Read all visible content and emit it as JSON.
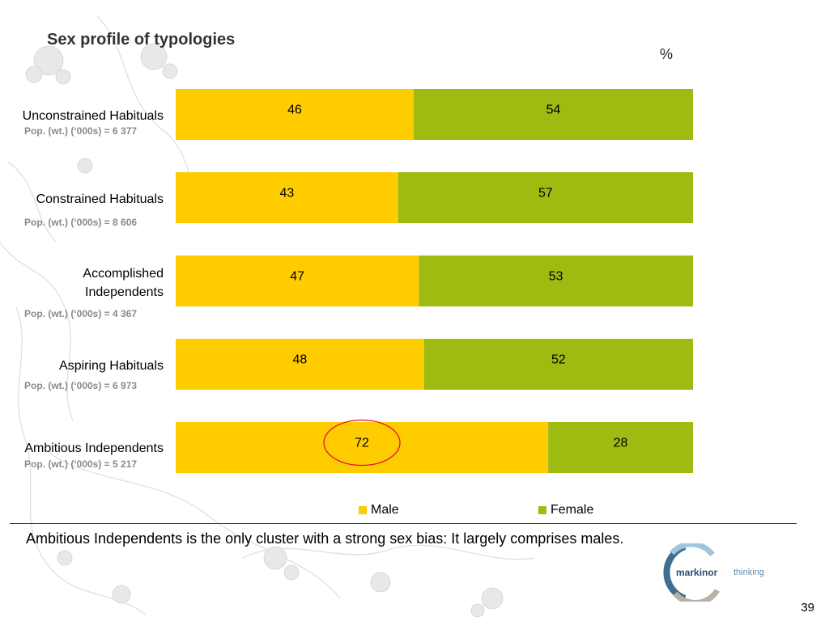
{
  "slide": {
    "title": "Sex profile of typologies",
    "unit": "%",
    "conclusion": "Ambitious Independents is the only cluster with a strong sex bias: It largely comprises males.",
    "page_number": "39",
    "logo": {
      "name": "markinor",
      "tagline": "thinking"
    }
  },
  "categories": [
    {
      "label": "Unconstrained Habituals",
      "pop": "Pop. (wt.) (‘000s) = 6 377"
    },
    {
      "label": "Constrained Habituals",
      "pop": "Pop. (wt.) (‘000s) = 8 606"
    },
    {
      "label": "Accomplished Independents",
      "pop": "Pop. (wt.) (‘000s) = 4 367"
    },
    {
      "label": "Aspiring Habituals",
      "pop": "Pop. (wt.) (‘000s) = 6 973"
    },
    {
      "label": "Ambitious Independents",
      "pop": "Pop. (wt.) (‘000s) = 5 217"
    }
  ],
  "chart_data": {
    "type": "bar",
    "orientation": "horizontal",
    "stacked": true,
    "title": "Sex profile of typologies",
    "categories": [
      "Unconstrained Habituals",
      "Constrained Habituals",
      "Accomplished Independents",
      "Aspiring Habituals",
      "Ambitious Independents"
    ],
    "series": [
      {
        "name": "Male",
        "color": "#FFCC00",
        "values": [
          46,
          43,
          47,
          48,
          72
        ]
      },
      {
        "name": "Female",
        "color": "#9EBB12",
        "values": [
          54,
          57,
          53,
          52,
          28
        ]
      }
    ],
    "xlim": [
      0,
      100
    ],
    "legend": "bottom",
    "grid": false,
    "highlight": {
      "category": "Ambitious Independents",
      "series": "Male",
      "color": "#E0103A"
    }
  }
}
